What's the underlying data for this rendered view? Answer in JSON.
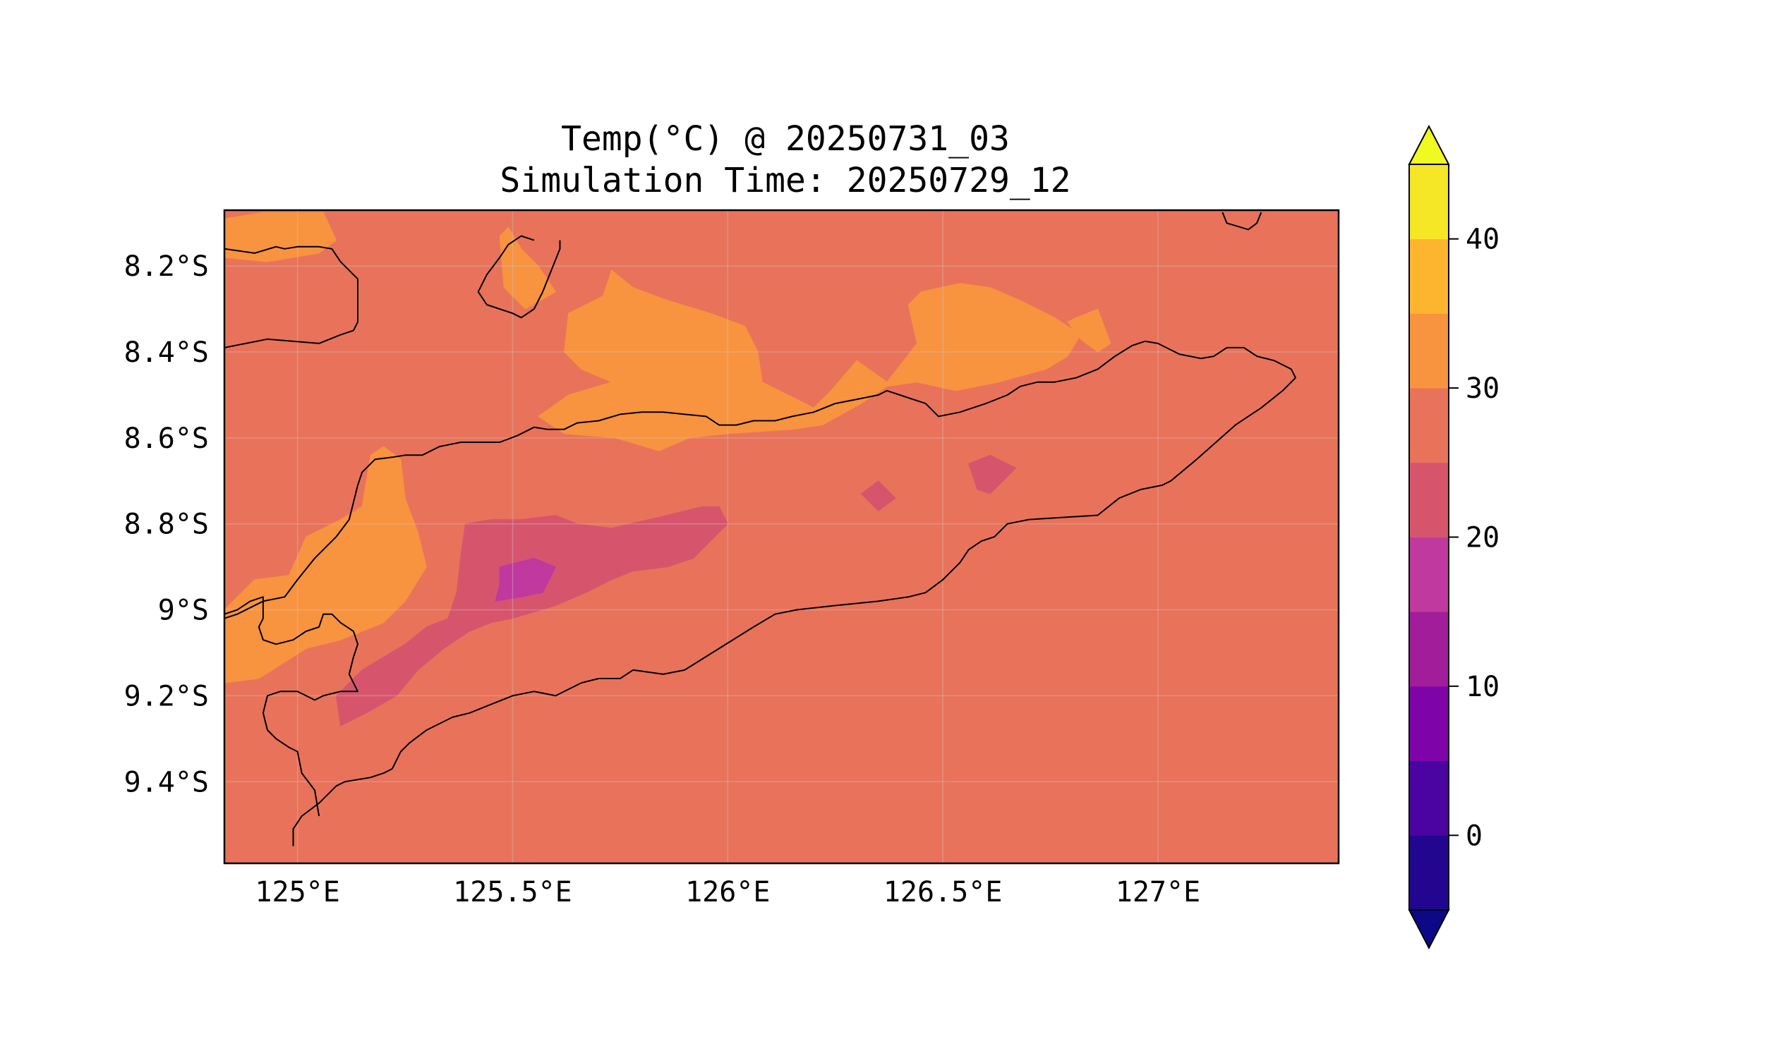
{
  "title": {
    "line1": "Temp(°C) @ 20250731_03",
    "line2": "Simulation Time: 20250729_12"
  },
  "map": {
    "extent_lon": [
      124.83,
      127.42
    ],
    "extent_lat": [
      -9.59,
      -8.07
    ],
    "x_ticks": [
      {
        "lon": 125.0,
        "label": "125°E"
      },
      {
        "lon": 125.5,
        "label": "125.5°E"
      },
      {
        "lon": 126.0,
        "label": "126°E"
      },
      {
        "lon": 126.5,
        "label": "126.5°E"
      },
      {
        "lon": 127.0,
        "label": "127°E"
      }
    ],
    "y_ticks": [
      {
        "lat": -8.2,
        "label": "8.2°S"
      },
      {
        "lat": -8.4,
        "label": "8.4°S"
      },
      {
        "lat": -8.6,
        "label": "8.6°S"
      },
      {
        "lat": -8.8,
        "label": "8.8°S"
      },
      {
        "lat": -9.0,
        "label": "9°S"
      },
      {
        "lat": -9.2,
        "label": "9.2°S"
      },
      {
        "lat": -9.4,
        "label": "9.4°S"
      }
    ],
    "gridlines": true,
    "background_color": "#e8735a"
  },
  "colorbar": {
    "colormap": "plasma",
    "extend": "both",
    "levels": [
      -5,
      0,
      5,
      10,
      15,
      20,
      25,
      30,
      35,
      40,
      45
    ],
    "colors": [
      "#22068f",
      "#4b03a1",
      "#7e03a8",
      "#a21d9a",
      "#c0399e",
      "#d6556d",
      "#e8735a",
      "#f89340",
      "#fdb42f",
      "#f5e626"
    ],
    "under_color": "#0d0887",
    "over_color": "#f0f921",
    "ticks": [
      {
        "value": 0,
        "label": "0"
      },
      {
        "value": 10,
        "label": "10"
      },
      {
        "value": 20,
        "label": "20"
      },
      {
        "value": 30,
        "label": "30"
      },
      {
        "value": 40,
        "label": "40"
      }
    ]
  },
  "regions": [
    {
      "class": "30-35",
      "color": "#f89340",
      "points": [
        [
          124.83,
          -8.09
        ],
        [
          124.92,
          -8.075
        ],
        [
          125.06,
          -8.075
        ],
        [
          125.09,
          -8.14
        ],
        [
          125.05,
          -8.17
        ],
        [
          124.93,
          -8.19
        ],
        [
          124.83,
          -8.18
        ]
      ]
    },
    {
      "class": "30-35",
      "color": "#f89340",
      "points": [
        [
          125.47,
          -8.13
        ],
        [
          125.49,
          -8.11
        ],
        [
          125.52,
          -8.16
        ],
        [
          125.56,
          -8.2
        ],
        [
          125.6,
          -8.26
        ],
        [
          125.53,
          -8.3
        ],
        [
          125.48,
          -8.25
        ]
      ]
    },
    {
      "class": "30-35",
      "color": "#f89340",
      "points": [
        [
          125.73,
          -8.21
        ],
        [
          125.78,
          -8.25
        ],
        [
          125.86,
          -8.28
        ],
        [
          125.96,
          -8.31
        ],
        [
          126.04,
          -8.34
        ],
        [
          126.07,
          -8.4
        ],
        [
          126.08,
          -8.47
        ],
        [
          126.2,
          -8.53
        ],
        [
          126.24,
          -8.49
        ],
        [
          126.3,
          -8.42
        ],
        [
          126.37,
          -8.47
        ],
        [
          126.44,
          -8.38
        ],
        [
          126.42,
          -8.29
        ],
        [
          126.45,
          -8.26
        ],
        [
          126.54,
          -8.24
        ],
        [
          126.61,
          -8.25
        ],
        [
          126.68,
          -8.28
        ],
        [
          126.76,
          -8.32
        ],
        [
          126.82,
          -8.36
        ],
        [
          126.79,
          -8.41
        ],
        [
          126.74,
          -8.44
        ],
        [
          126.63,
          -8.47
        ],
        [
          126.53,
          -8.49
        ],
        [
          126.44,
          -8.47
        ],
        [
          126.37,
          -8.48
        ],
        [
          126.31,
          -8.52
        ],
        [
          126.22,
          -8.57
        ],
        [
          126.15,
          -8.58
        ],
        [
          126.0,
          -8.59
        ],
        [
          125.91,
          -8.6
        ],
        [
          125.84,
          -8.63
        ],
        [
          125.74,
          -8.6
        ],
        [
          125.62,
          -8.59
        ],
        [
          125.56,
          -8.55
        ],
        [
          125.63,
          -8.5
        ],
        [
          125.73,
          -8.47
        ],
        [
          125.66,
          -8.44
        ],
        [
          125.62,
          -8.4
        ],
        [
          125.63,
          -8.31
        ],
        [
          125.71,
          -8.27
        ]
      ]
    },
    {
      "class": "30-35",
      "color": "#f89340",
      "points": [
        [
          126.79,
          -8.33
        ],
        [
          126.81,
          -8.32
        ],
        [
          126.86,
          -8.3
        ],
        [
          126.89,
          -8.38
        ],
        [
          126.86,
          -8.4
        ],
        [
          126.82,
          -8.37
        ]
      ]
    },
    {
      "class": "30-35",
      "color": "#f89340",
      "points": [
        [
          125.17,
          -8.64
        ],
        [
          125.2,
          -8.62
        ],
        [
          125.24,
          -8.65
        ],
        [
          125.25,
          -8.74
        ],
        [
          125.28,
          -8.82
        ],
        [
          125.3,
          -8.9
        ],
        [
          125.25,
          -8.98
        ],
        [
          125.2,
          -9.03
        ],
        [
          125.1,
          -9.07
        ],
        [
          125.02,
          -9.09
        ],
        [
          124.91,
          -9.16
        ],
        [
          124.83,
          -9.17
        ],
        [
          124.83,
          -9.0
        ],
        [
          124.9,
          -8.93
        ],
        [
          124.98,
          -8.92
        ],
        [
          125.02,
          -8.83
        ],
        [
          125.1,
          -8.79
        ],
        [
          125.15,
          -8.76
        ]
      ]
    },
    {
      "class": "20-25",
      "color": "#d6556d",
      "points": [
        [
          125.39,
          -8.8
        ],
        [
          125.45,
          -8.79
        ],
        [
          125.52,
          -8.79
        ],
        [
          125.6,
          -8.78
        ],
        [
          125.65,
          -8.8
        ],
        [
          125.73,
          -8.81
        ],
        [
          125.86,
          -8.78
        ],
        [
          125.94,
          -8.76
        ],
        [
          125.98,
          -8.76
        ],
        [
          126.0,
          -8.8
        ],
        [
          125.96,
          -8.84
        ],
        [
          125.92,
          -8.88
        ],
        [
          125.86,
          -8.9
        ],
        [
          125.78,
          -8.91
        ],
        [
          125.73,
          -8.93
        ],
        [
          125.67,
          -8.96
        ],
        [
          125.6,
          -8.99
        ],
        [
          125.5,
          -9.02
        ],
        [
          125.45,
          -9.03
        ],
        [
          125.4,
          -9.05
        ],
        [
          125.34,
          -9.09
        ],
        [
          125.28,
          -9.14
        ],
        [
          125.23,
          -9.2
        ],
        [
          125.16,
          -9.24
        ],
        [
          125.1,
          -9.27
        ],
        [
          125.09,
          -9.2
        ],
        [
          125.15,
          -9.14
        ],
        [
          125.25,
          -9.08
        ],
        [
          125.3,
          -9.04
        ],
        [
          125.35,
          -9.02
        ],
        [
          125.37,
          -8.96
        ],
        [
          125.38,
          -8.87
        ]
      ]
    },
    {
      "class": "15-20",
      "color": "#c0399e",
      "points": [
        [
          125.47,
          -8.9
        ],
        [
          125.55,
          -8.88
        ],
        [
          125.6,
          -8.9
        ],
        [
          125.57,
          -8.96
        ],
        [
          125.52,
          -8.97
        ],
        [
          125.46,
          -8.98
        ],
        [
          125.47,
          -8.94
        ]
      ]
    },
    {
      "class": "20-25",
      "color": "#d6556d",
      "points": [
        [
          126.31,
          -8.73
        ],
        [
          126.35,
          -8.7
        ],
        [
          126.39,
          -8.74
        ],
        [
          126.35,
          -8.77
        ]
      ]
    },
    {
      "class": "20-25",
      "color": "#d6556d",
      "points": [
        [
          126.56,
          -8.66
        ],
        [
          126.61,
          -8.64
        ],
        [
          126.67,
          -8.67
        ],
        [
          126.61,
          -8.73
        ],
        [
          126.58,
          -8.72
        ]
      ]
    }
  ],
  "coastlines": [
    [
      [
        124.83,
        -8.16
      ],
      [
        124.9,
        -8.17
      ],
      [
        124.95,
        -8.155
      ],
      [
        124.97,
        -8.16
      ],
      [
        125.0,
        -8.155
      ],
      [
        125.05,
        -8.155
      ],
      [
        125.08,
        -8.16
      ],
      [
        125.1,
        -8.19
      ],
      [
        125.14,
        -8.23
      ],
      [
        125.14,
        -8.33
      ],
      [
        125.13,
        -8.35
      ],
      [
        125.1,
        -8.36
      ],
      [
        125.05,
        -8.38
      ],
      [
        124.93,
        -8.37
      ],
      [
        124.83,
        -8.39
      ]
    ],
    [
      [
        125.55,
        -8.14
      ],
      [
        125.52,
        -8.13
      ],
      [
        125.49,
        -8.15
      ],
      [
        125.47,
        -8.18
      ],
      [
        125.44,
        -8.22
      ],
      [
        125.42,
        -8.26
      ],
      [
        125.44,
        -8.29
      ],
      [
        125.5,
        -8.31
      ],
      [
        125.52,
        -8.32
      ],
      [
        125.55,
        -8.3
      ],
      [
        125.57,
        -8.26
      ]
    ],
    [
      [
        125.57,
        -8.26
      ],
      [
        125.59,
        -8.21
      ],
      [
        125.61,
        -8.16
      ],
      [
        125.61,
        -8.14
      ]
    ],
    [
      [
        124.83,
        -9.02
      ],
      [
        124.86,
        -9.01
      ],
      [
        124.92,
        -8.98
      ],
      [
        124.97,
        -8.97
      ],
      [
        125.0,
        -8.93
      ],
      [
        125.04,
        -8.88
      ],
      [
        125.07,
        -8.85
      ],
      [
        125.09,
        -8.83
      ],
      [
        125.12,
        -8.79
      ],
      [
        125.14,
        -8.71
      ],
      [
        125.15,
        -8.68
      ],
      [
        125.18,
        -8.65
      ],
      [
        125.22,
        -8.645
      ],
      [
        125.25,
        -8.64
      ],
      [
        125.29,
        -8.64
      ],
      [
        125.33,
        -8.62
      ],
      [
        125.38,
        -8.61
      ],
      [
        125.43,
        -8.61
      ],
      [
        125.47,
        -8.61
      ],
      [
        125.51,
        -8.595
      ],
      [
        125.55,
        -8.575
      ],
      [
        125.58,
        -8.58
      ],
      [
        125.62,
        -8.58
      ],
      [
        125.65,
        -8.565
      ],
      [
        125.7,
        -8.56
      ],
      [
        125.75,
        -8.545
      ],
      [
        125.8,
        -8.54
      ],
      [
        125.85,
        -8.54
      ],
      [
        125.9,
        -8.545
      ],
      [
        125.95,
        -8.55
      ],
      [
        125.98,
        -8.57
      ],
      [
        126.02,
        -8.57
      ],
      [
        126.06,
        -8.56
      ],
      [
        126.11,
        -8.56
      ],
      [
        126.15,
        -8.55
      ],
      [
        126.2,
        -8.54
      ],
      [
        126.25,
        -8.52
      ],
      [
        126.3,
        -8.51
      ],
      [
        126.35,
        -8.5
      ],
      [
        126.37,
        -8.49
      ],
      [
        126.4,
        -8.5
      ],
      [
        126.46,
        -8.52
      ],
      [
        126.49,
        -8.55
      ],
      [
        126.54,
        -8.54
      ],
      [
        126.6,
        -8.52
      ],
      [
        126.65,
        -8.5
      ],
      [
        126.68,
        -8.48
      ],
      [
        126.72,
        -8.47
      ],
      [
        126.76,
        -8.47
      ],
      [
        126.81,
        -8.46
      ],
      [
        126.86,
        -8.44
      ],
      [
        126.9,
        -8.41
      ],
      [
        126.94,
        -8.385
      ],
      [
        126.97,
        -8.375
      ],
      [
        127.0,
        -8.38
      ],
      [
        127.05,
        -8.405
      ],
      [
        127.1,
        -8.415
      ],
      [
        127.13,
        -8.41
      ],
      [
        127.16,
        -8.39
      ],
      [
        127.2,
        -8.39
      ],
      [
        127.23,
        -8.41
      ],
      [
        127.27,
        -8.42
      ],
      [
        127.31,
        -8.44
      ],
      [
        127.32,
        -8.46
      ],
      [
        127.29,
        -8.49
      ],
      [
        127.24,
        -8.53
      ],
      [
        127.18,
        -8.57
      ],
      [
        127.09,
        -8.65
      ],
      [
        127.03,
        -8.7
      ],
      [
        127.01,
        -8.71
      ],
      [
        126.96,
        -8.72
      ],
      [
        126.91,
        -8.74
      ],
      [
        126.86,
        -8.78
      ],
      [
        126.7,
        -8.79
      ],
      [
        126.65,
        -8.8
      ],
      [
        126.62,
        -8.83
      ],
      [
        126.59,
        -8.84
      ],
      [
        126.56,
        -8.86
      ],
      [
        126.54,
        -8.89
      ],
      [
        126.5,
        -8.93
      ],
      [
        126.46,
        -8.96
      ],
      [
        126.42,
        -8.97
      ],
      [
        126.35,
        -8.98
      ],
      [
        126.25,
        -8.99
      ],
      [
        126.16,
        -9.0
      ],
      [
        126.11,
        -9.01
      ],
      [
        126.06,
        -9.04
      ],
      [
        125.98,
        -9.09
      ],
      [
        125.9,
        -9.14
      ],
      [
        125.85,
        -9.15
      ],
      [
        125.78,
        -9.14
      ],
      [
        125.75,
        -9.16
      ],
      [
        125.7,
        -9.16
      ],
      [
        125.66,
        -9.17
      ],
      [
        125.6,
        -9.2
      ],
      [
        125.55,
        -9.19
      ],
      [
        125.5,
        -9.2
      ],
      [
        125.45,
        -9.22
      ],
      [
        125.4,
        -9.24
      ],
      [
        125.36,
        -9.25
      ],
      [
        125.3,
        -9.28
      ],
      [
        125.26,
        -9.31
      ],
      [
        125.24,
        -9.33
      ],
      [
        125.22,
        -9.37
      ],
      [
        125.2,
        -9.38
      ],
      [
        125.17,
        -9.39
      ],
      [
        125.11,
        -9.4
      ],
      [
        125.09,
        -9.41
      ],
      [
        125.05,
        -9.45
      ],
      [
        125.01,
        -9.48
      ],
      [
        124.99,
        -9.51
      ],
      [
        124.99,
        -9.55
      ]
    ],
    [
      [
        124.83,
        -9.01
      ],
      [
        124.86,
        -9.0
      ],
      [
        124.89,
        -8.98
      ],
      [
        124.92,
        -8.97
      ],
      [
        124.92,
        -9.02
      ],
      [
        124.91,
        -9.04
      ],
      [
        124.92,
        -9.07
      ],
      [
        124.95,
        -9.08
      ],
      [
        124.99,
        -9.07
      ],
      [
        125.02,
        -9.05
      ],
      [
        125.05,
        -9.04
      ],
      [
        125.06,
        -9.01
      ],
      [
        125.08,
        -9.01
      ],
      [
        125.1,
        -9.03
      ],
      [
        125.13,
        -9.05
      ],
      [
        125.14,
        -9.08
      ],
      [
        125.13,
        -9.11
      ],
      [
        125.12,
        -9.15
      ],
      [
        125.14,
        -9.19
      ],
      [
        125.1,
        -9.19
      ],
      [
        125.06,
        -9.2
      ],
      [
        125.04,
        -9.21
      ],
      [
        125.02,
        -9.2
      ],
      [
        125.0,
        -9.19
      ],
      [
        124.96,
        -9.19
      ],
      [
        124.93,
        -9.2
      ],
      [
        124.92,
        -9.24
      ],
      [
        124.93,
        -9.28
      ],
      [
        124.95,
        -9.3
      ],
      [
        124.98,
        -9.32
      ],
      [
        125.0,
        -9.33
      ],
      [
        125.01,
        -9.38
      ],
      [
        125.04,
        -9.42
      ],
      [
        125.05,
        -9.48
      ]
    ],
    [
      [
        127.15,
        -8.075
      ],
      [
        127.16,
        -8.1
      ],
      [
        127.21,
        -8.115
      ],
      [
        127.23,
        -8.1
      ],
      [
        127.24,
        -8.075
      ]
    ]
  ]
}
